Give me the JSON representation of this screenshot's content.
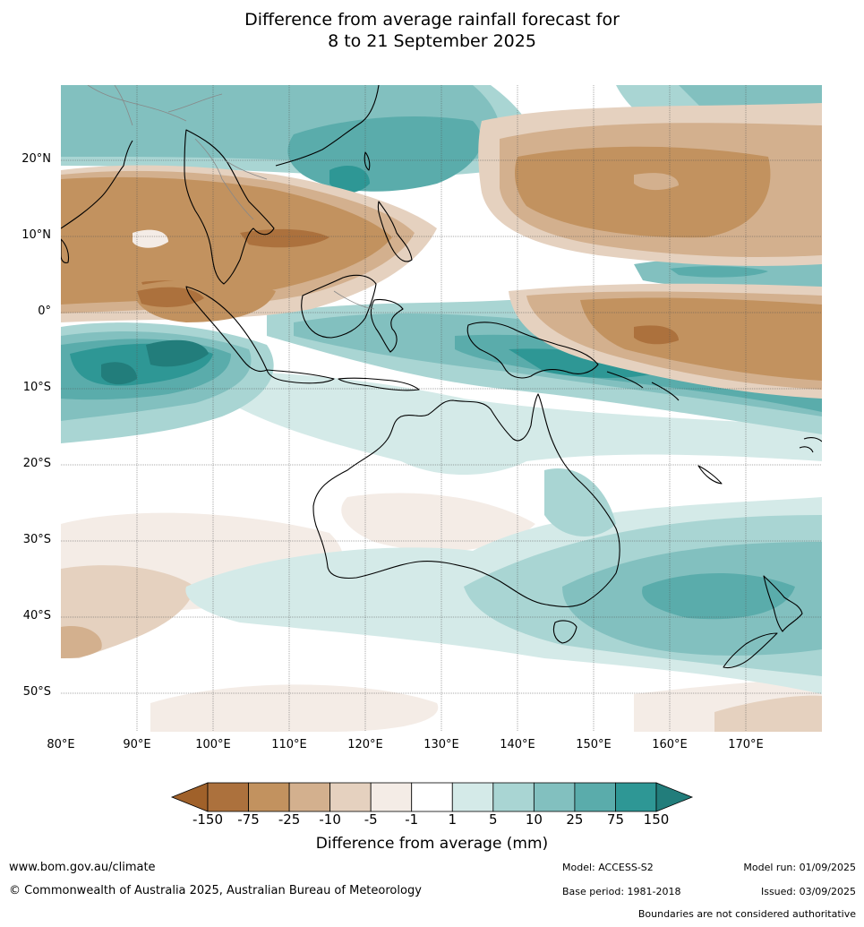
{
  "title_line1": "Difference from average rainfall forecast for",
  "title_line2": "8 to 21 September 2025",
  "lat_labels": [
    "20°N",
    "10°N",
    "0°",
    "10°S",
    "20°S",
    "30°S",
    "40°S",
    "50°S"
  ],
  "lon_labels": [
    "80°E",
    "90°E",
    "100°E",
    "110°E",
    "120°E",
    "130°E",
    "140°E",
    "150°E",
    "160°E",
    "170°E"
  ],
  "colorbar": {
    "ticks": [
      "-150",
      "-75",
      "-25",
      "-10",
      "-5",
      "-1",
      "1",
      "5",
      "10",
      "25",
      "75",
      "150"
    ],
    "label": "Difference from average (mm)",
    "colors": [
      "#a0612a",
      "#ac713d",
      "#c2925f",
      "#d3b08e",
      "#e5d1bf",
      "#f4ece6",
      "#ffffff",
      "#d4eae8",
      "#a9d5d3",
      "#82c0bf",
      "#5aacab",
      "#2e9795",
      "#227d7b"
    ]
  },
  "footer": {
    "url": "www.bom.gov.au/climate",
    "copyright": "© Commonwealth of Australia 2025, Australian Bureau of Meteorology",
    "model": "Model: ACCESS-S2",
    "base_period": "Base period: 1981-2018",
    "model_run": "Model run: 01/09/2025",
    "issued": "Issued: 03/09/2025",
    "disclaimer": "Boundaries are not considered authoritative"
  }
}
